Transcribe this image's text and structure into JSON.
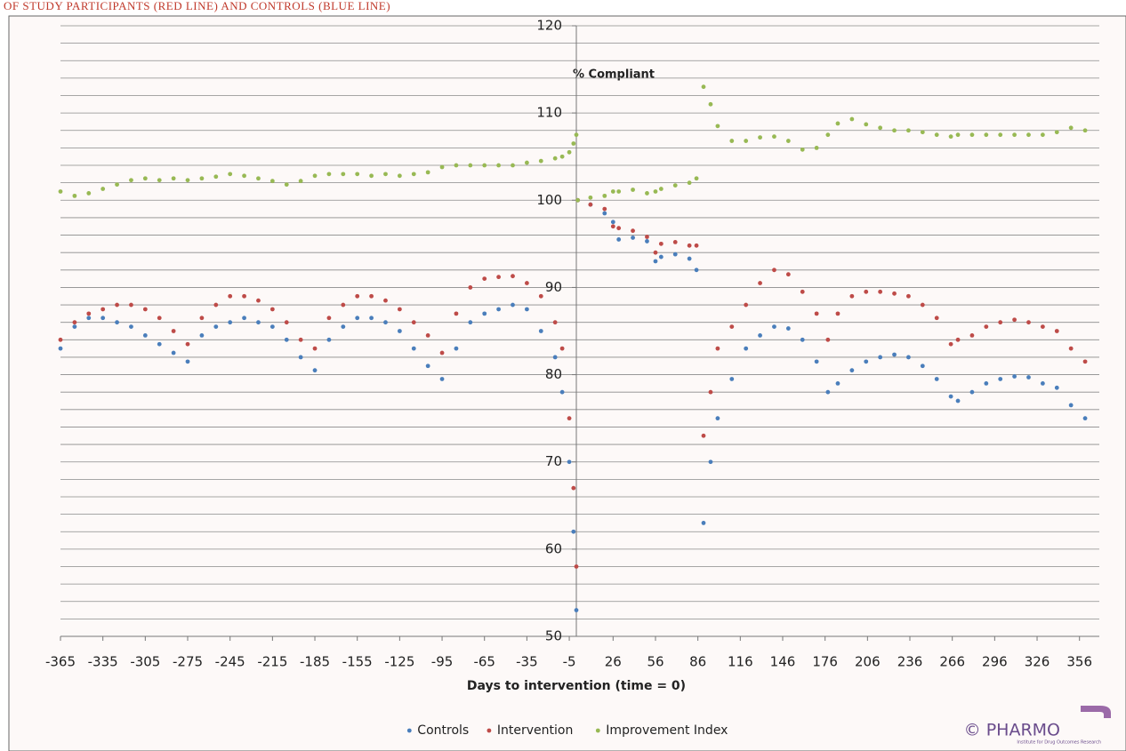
{
  "chart_data": {
    "type": "scatter",
    "title": "OF STUDY PARTICIPANTS (RED LINE) AND  CONTROLS (BLUE LINE)",
    "annotation": "% Compliant",
    "x_label": "Days to intervention (time = 0)",
    "xlim": [
      -365,
      365
    ],
    "ylim": [
      50,
      120
    ],
    "xticks": [
      -365,
      -335,
      -305,
      -275,
      -245,
      -215,
      -185,
      -155,
      -125,
      -95,
      -65,
      -35,
      -5,
      26,
      56,
      86,
      116,
      146,
      176,
      206,
      236,
      266,
      296,
      326,
      356
    ],
    "yticks": [
      50,
      60,
      70,
      80,
      90,
      100,
      110,
      120
    ],
    "ygrid": [
      50,
      52,
      54,
      56,
      58,
      60,
      62,
      64,
      66,
      68,
      70,
      72,
      74,
      76,
      78,
      80,
      82,
      84,
      86,
      88,
      90,
      92,
      94,
      96,
      98,
      100,
      102,
      104,
      106,
      108,
      110,
      112,
      114,
      116,
      118,
      120
    ],
    "legend": "bottom",
    "x": [
      -365,
      -355,
      -345,
      -335,
      -325,
      -315,
      -305,
      -295,
      -285,
      -275,
      -265,
      -255,
      -245,
      -235,
      -225,
      -215,
      -205,
      -195,
      -185,
      -175,
      -165,
      -155,
      -145,
      -135,
      -125,
      -115,
      -105,
      -95,
      -85,
      -75,
      -65,
      -55,
      -45,
      -35,
      -25,
      -15,
      -10,
      -5,
      -2,
      0,
      1,
      10,
      20,
      26,
      30,
      40,
      50,
      56,
      60,
      70,
      80,
      85,
      90,
      95,
      100,
      110,
      120,
      130,
      140,
      150,
      160,
      170,
      178,
      185,
      195,
      205,
      215,
      225,
      235,
      245,
      255,
      265,
      270,
      280,
      290,
      300,
      310,
      320,
      330,
      340,
      350,
      360
    ],
    "series": [
      {
        "name": "Controls",
        "color": "#4a7ebb",
        "values": [
          83,
          85.5,
          86.5,
          86.5,
          86,
          85.5,
          84.5,
          83.5,
          82.5,
          81.5,
          84.5,
          85.5,
          86,
          86.5,
          86,
          85.5,
          84,
          82,
          80.5,
          84,
          85.5,
          86.5,
          86.5,
          86,
          85,
          83,
          81,
          79.5,
          83,
          86,
          87,
          87.5,
          88,
          87.5,
          85,
          82,
          78,
          70,
          62,
          53,
          100,
          99.5,
          98.5,
          97.5,
          95.5,
          95.7,
          95.3,
          93,
          93.5,
          93.8,
          93.3,
          92,
          63,
          70,
          75,
          79.5,
          83,
          84.5,
          85.5,
          85.3,
          84,
          81.5,
          78,
          79,
          80.5,
          81.5,
          82,
          82.3,
          82,
          81,
          79.5,
          77.5,
          77,
          78,
          79,
          79.5,
          79.8,
          79.7,
          79,
          78.5,
          76.5,
          75
        ]
      },
      {
        "name": "Intervention",
        "color": "#be4b48",
        "values": [
          84,
          86,
          87,
          87.5,
          88,
          88,
          87.5,
          86.5,
          85,
          83.5,
          86.5,
          88,
          89,
          89,
          88.5,
          87.5,
          86,
          84,
          83,
          86.5,
          88,
          89,
          89,
          88.5,
          87.5,
          86,
          84.5,
          82.5,
          87,
          90,
          91,
          91.2,
          91.3,
          90.5,
          89,
          86,
          83,
          75,
          67,
          58,
          100,
          99.5,
          99,
          97,
          96.8,
          96.5,
          95.8,
          94,
          95,
          95.2,
          94.8,
          94.8,
          73,
          78,
          83,
          85.5,
          88,
          90.5,
          92,
          91.5,
          89.5,
          87,
          84,
          87,
          89,
          89.5,
          89.5,
          89.3,
          89,
          88,
          86.5,
          83.5,
          84,
          84.5,
          85.5,
          86,
          86.3,
          86,
          85.5,
          85,
          83,
          81.5
        ]
      },
      {
        "name": "Improvement Index",
        "color": "#98b954",
        "values": [
          101,
          100.5,
          100.8,
          101.3,
          101.8,
          102.3,
          102.5,
          102.3,
          102.5,
          102.3,
          102.5,
          102.7,
          103,
          102.8,
          102.5,
          102.2,
          101.8,
          102.2,
          102.8,
          103,
          103,
          103,
          102.8,
          103,
          102.8,
          103,
          103.2,
          103.8,
          104,
          104,
          104,
          104,
          104,
          104.3,
          104.5,
          104.8,
          105,
          105.5,
          106.5,
          107.5,
          100,
          100.3,
          100.5,
          101,
          101,
          101.2,
          100.8,
          101,
          101.3,
          101.7,
          102,
          102.5,
          113,
          111,
          108.5,
          106.8,
          106.8,
          107.2,
          107.3,
          106.8,
          105.8,
          106,
          107.5,
          108.8,
          109.3,
          108.7,
          108.3,
          108,
          108,
          107.8,
          107.5,
          107.3,
          107.5,
          107.5,
          107.5,
          107.5,
          107.5,
          107.5,
          107.5,
          107.8,
          108.3,
          108
        ]
      }
    ]
  },
  "logo": {
    "text": "© PHARMO",
    "subtitle": "Institute for Drug Outcomes Research"
  }
}
